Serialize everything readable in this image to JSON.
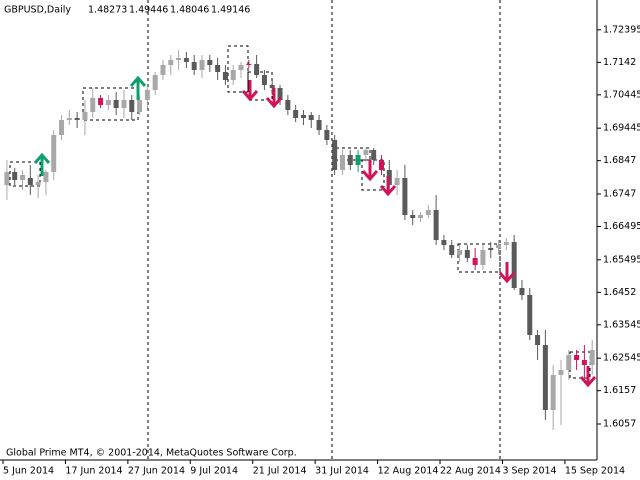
{
  "chart_data": {
    "type": "candlestick",
    "title": "GBPUSD,Daily",
    "ohlc_text": [
      "1.48273",
      "1.49446",
      "1.48046",
      "1.49146"
    ],
    "footer": "Global Prime MT4, © 2001-2014, MetaQuotes Software Corp.",
    "open": [
      1.6774,
      1.6813,
      1.6789,
      1.6795,
      1.6774,
      1.6783,
      1.6813,
      1.6924,
      1.6969,
      1.6975,
      1.6969,
      1.6993,
      1.7035,
      1.7014,
      1.7029,
      1.7005,
      1.7029,
      1.6993,
      1.7029,
      1.7059,
      1.7104,
      1.7134,
      1.7149,
      1.7155,
      1.7143,
      1.7119,
      1.7149,
      1.7134,
      1.7113,
      1.7089,
      1.7119,
      1.7134,
      1.7137,
      1.7104,
      1.7074,
      1.7065,
      1.7029,
      1.6999,
      1.6975,
      1.6984,
      1.6969,
      1.6939,
      1.6909,
      1.6819,
      1.6864,
      1.6834,
      1.6864,
      1.6879,
      1.6849,
      1.6819,
      1.6774,
      1.6795,
      1.6684,
      1.6675,
      1.6684,
      1.6699,
      1.6609,
      1.6594,
      1.6564,
      1.6579,
      1.6555,
      1.6534,
      1.6579,
      1.6585,
      1.6594,
      1.6603,
      1.6465,
      1.6444,
      1.6324,
      1.6294,
      1.6099,
      1.6204,
      1.6219,
      1.6264,
      1.6249,
      1.6234
    ],
    "high": [
      1.6849,
      1.6825,
      1.6819,
      1.6834,
      1.6804,
      1.6819,
      1.6939,
      1.6984,
      1.6999,
      1.6993,
      1.7029,
      1.7065,
      1.7044,
      1.7044,
      1.7053,
      1.7059,
      1.7044,
      1.7044,
      1.7074,
      1.7113,
      1.7149,
      1.7164,
      1.7179,
      1.7173,
      1.7164,
      1.7164,
      1.7164,
      1.7155,
      1.7134,
      1.7134,
      1.7143,
      1.7149,
      1.7164,
      1.7119,
      1.7089,
      1.7074,
      1.7044,
      1.7014,
      1.6999,
      1.6993,
      1.6984,
      1.6954,
      1.6924,
      1.6879,
      1.6879,
      1.6879,
      1.6885,
      1.6885,
      1.6864,
      1.6849,
      1.6819,
      1.6834,
      1.6699,
      1.6693,
      1.6714,
      1.6744,
      1.6624,
      1.6609,
      1.6594,
      1.6594,
      1.6585,
      1.6594,
      1.6603,
      1.6609,
      1.6615,
      1.6624,
      1.6489,
      1.6465,
      1.6339,
      1.6339,
      1.6234,
      1.6249,
      1.6279,
      1.6279,
      1.6294,
      1.6309
    ],
    "low": [
      1.6729,
      1.6774,
      1.6759,
      1.6744,
      1.6735,
      1.6744,
      1.6789,
      1.6909,
      1.6954,
      1.6945,
      1.6924,
      1.6975,
      1.7005,
      1.6999,
      1.6984,
      1.6975,
      1.6969,
      1.6984,
      1.7005,
      1.7044,
      1.7089,
      1.7104,
      1.7119,
      1.7125,
      1.7104,
      1.7095,
      1.7113,
      1.7089,
      1.7074,
      1.7074,
      1.7095,
      1.7125,
      1.7095,
      1.7059,
      1.7044,
      1.7014,
      1.6984,
      1.6963,
      1.6954,
      1.6945,
      1.6924,
      1.6894,
      1.6804,
      1.6804,
      1.6819,
      1.6813,
      1.6843,
      1.6834,
      1.6804,
      1.6759,
      1.6744,
      1.6669,
      1.6654,
      1.6663,
      1.6675,
      1.6594,
      1.6579,
      1.6555,
      1.6543,
      1.6543,
      1.6519,
      1.6519,
      1.6555,
      1.6564,
      1.6579,
      1.6459,
      1.6429,
      1.6309,
      1.6249,
      1.6069,
      1.6039,
      1.6054,
      1.6189,
      1.6219,
      1.6189,
      1.6204
    ],
    "close": [
      1.6813,
      1.6789,
      1.6804,
      1.6774,
      1.6783,
      1.6813,
      1.6924,
      1.6969,
      1.6975,
      1.6969,
      1.6993,
      1.7035,
      1.7014,
      1.7029,
      1.7005,
      1.7029,
      1.6993,
      1.7029,
      1.7059,
      1.7104,
      1.7134,
      1.7149,
      1.7155,
      1.7143,
      1.7119,
      1.7149,
      1.7134,
      1.7113,
      1.7089,
      1.7119,
      1.7134,
      1.7137,
      1.7104,
      1.7074,
      1.7065,
      1.7029,
      1.6999,
      1.6975,
      1.6984,
      1.6969,
      1.6939,
      1.6909,
      1.6819,
      1.6864,
      1.6834,
      1.6864,
      1.6879,
      1.6849,
      1.6819,
      1.6774,
      1.6795,
      1.6684,
      1.6675,
      1.6684,
      1.6699,
      1.6609,
      1.6594,
      1.6564,
      1.6579,
      1.6555,
      1.6534,
      1.6579,
      1.6585,
      1.6594,
      1.6603,
      1.6465,
      1.6444,
      1.6324,
      1.6294,
      1.6099,
      1.6204,
      1.6219,
      1.6264,
      1.6249,
      1.6234,
      1.6279
    ],
    "colors": [
      "#a8a8a8",
      "#5a5a5a",
      "#a8a8a8",
      "#5a5a5a",
      "#a8a8a8",
      "#a8a8a8",
      "#a8a8a8",
      "#a8a8a8",
      "#a8a8a8",
      "#5a5a5a",
      "#a8a8a8",
      "#a8a8a8",
      "#d0145a",
      "#a8a8a8",
      "#5a5a5a",
      "#a8a8a8",
      "#5a5a5a",
      "#a8a8a8",
      "#a8a8a8",
      "#a8a8a8",
      "#a8a8a8",
      "#a8a8a8",
      "#a8a8a8",
      "#5a5a5a",
      "#5a5a5a",
      "#a8a8a8",
      "#5a5a5a",
      "#5a5a5a",
      "#5a5a5a",
      "#a8a8a8",
      "#a8a8a8",
      "#d0145a",
      "#5a5a5a",
      "#5a5a5a",
      "#5a5a5a",
      "#5a5a5a",
      "#5a5a5a",
      "#5a5a5a",
      "#5a5a5a",
      "#5a5a5a",
      "#5a5a5a",
      "#5a5a5a",
      "#5a5a5a",
      "#a8a8a8",
      "#5a5a5a",
      "#10a070",
      "#a8a8a8",
      "#5a5a5a",
      "#d0145a",
      "#5a5a5a",
      "#a8a8a8",
      "#5a5a5a",
      "#5a5a5a",
      "#a8a8a8",
      "#a8a8a8",
      "#5a5a5a",
      "#5a5a5a",
      "#5a5a5a",
      "#a8a8a8",
      "#5a5a5a",
      "#d0145a",
      "#a8a8a8",
      "#5a5a5a",
      "#a8a8a8",
      "#a8a8a8",
      "#5a5a5a",
      "#5a5a5a",
      "#5a5a5a",
      "#5a5a5a",
      "#5a5a5a",
      "#a8a8a8",
      "#a8a8a8",
      "#a8a8a8",
      "#d0145a",
      "#d0145a",
      "#a8a8a8"
    ],
    "xlim": [
      0,
      76.5
    ],
    "xticks": [
      {
        "value": 0,
        "label": "5 Jun 2014"
      },
      {
        "value": 8,
        "label": "17 Jun 2014"
      },
      {
        "value": 16,
        "label": "27 Jun 2014"
      },
      {
        "value": 24,
        "label": "9 Jul 2014"
      },
      {
        "value": 32,
        "label": "21 Jul 2014"
      },
      {
        "value": 40,
        "label": "31 Jul 2014"
      },
      {
        "value": 48,
        "label": "12 Aug 2014"
      },
      {
        "value": 56,
        "label": "22 Aug 2014"
      },
      {
        "value": 64,
        "label": "3 Sep 2014"
      },
      {
        "value": 72,
        "label": "15 Sep 2014"
      }
    ],
    "ylim": [
      1.5949,
      1.7329
    ],
    "yticks": [
      1.72395,
      1.7142,
      1.70445,
      1.69445,
      1.6847,
      1.6747,
      1.66495,
      1.65495,
      1.6452,
      1.63545,
      1.62545,
      1.6157,
      1.6057
    ]
  }
}
